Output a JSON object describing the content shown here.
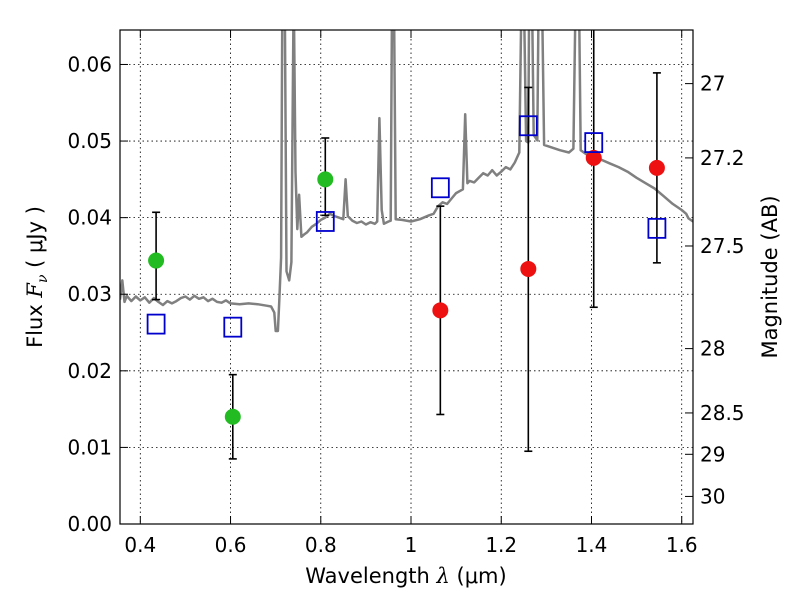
{
  "chart_data": {
    "type": "scatter",
    "xlabel_prefix": "Wavelength  ",
    "xlabel_symbol": "λ",
    "xlabel_unit": " (μm)",
    "ylabel_prefix": "Flux  ",
    "ylabel_symbol": "F",
    "ylabel_subscript": "ν",
    "ylabel_unit": "  ( μJy )",
    "ylabel_right": "Magnitude (AB)",
    "xlim": [
      0.355,
      1.625
    ],
    "ylim": [
      0.0,
      0.0645
    ],
    "x_ticks": [
      0.4,
      0.6,
      0.8,
      1.0,
      1.2,
      1.4,
      1.6
    ],
    "x_tick_labels": [
      "0.4",
      "0.6",
      "0.8",
      "1",
      "1.2",
      "1.4",
      "1.6"
    ],
    "y_ticks": [
      0.0,
      0.01,
      0.02,
      0.03,
      0.04,
      0.05,
      0.06
    ],
    "y_tick_labels": [
      "0.00",
      "0.01",
      "0.02",
      "0.03",
      "0.04",
      "0.05",
      "0.06"
    ],
    "right_ticks": [
      {
        "label": "27",
        "flux": 0.0575
      },
      {
        "label": "27.2",
        "flux": 0.0478
      },
      {
        "label": "27.5",
        "flux": 0.0363
      },
      {
        "label": "28",
        "flux": 0.0229
      },
      {
        "label": "28.5",
        "flux": 0.0145
      },
      {
        "label": "29",
        "flux": 0.0091
      },
      {
        "label": "30",
        "flux": 0.0036
      }
    ],
    "grid": true,
    "colors": {
      "spectrum": "#808080",
      "green_points": "#22bb22",
      "red_points": "#ee1111",
      "model_squares": "#0000cc",
      "errorbars": "#000000"
    },
    "series": [
      {
        "kind": "spectrum_line",
        "points": [
          [
            0.355,
            0.0293
          ],
          [
            0.36,
            0.0318
          ],
          [
            0.365,
            0.029
          ],
          [
            0.37,
            0.0298
          ],
          [
            0.38,
            0.0291
          ],
          [
            0.39,
            0.0297
          ],
          [
            0.4,
            0.0292
          ],
          [
            0.41,
            0.0296
          ],
          [
            0.42,
            0.0289
          ],
          [
            0.43,
            0.0295
          ],
          [
            0.44,
            0.029
          ],
          [
            0.45,
            0.0286
          ],
          [
            0.46,
            0.0291
          ],
          [
            0.47,
            0.0288
          ],
          [
            0.48,
            0.0291
          ],
          [
            0.49,
            0.0295
          ],
          [
            0.5,
            0.0297
          ],
          [
            0.51,
            0.0293
          ],
          [
            0.52,
            0.0298
          ],
          [
            0.53,
            0.0294
          ],
          [
            0.54,
            0.0296
          ],
          [
            0.55,
            0.0291
          ],
          [
            0.56,
            0.0294
          ],
          [
            0.57,
            0.029
          ],
          [
            0.58,
            0.0289
          ],
          [
            0.59,
            0.0292
          ],
          [
            0.6,
            0.0288
          ],
          [
            0.62,
            0.0287
          ],
          [
            0.64,
            0.0288
          ],
          [
            0.66,
            0.0287
          ],
          [
            0.68,
            0.0285
          ],
          [
            0.69,
            0.0284
          ],
          [
            0.697,
            0.0276
          ],
          [
            0.7,
            0.0252
          ],
          [
            0.705,
            0.0252
          ],
          [
            0.708,
            0.0292
          ],
          [
            0.712,
            0.0348
          ],
          [
            0.715,
            0.07
          ],
          [
            0.72,
            0.07
          ],
          [
            0.724,
            0.033
          ],
          [
            0.73,
            0.0318
          ],
          [
            0.735,
            0.0342
          ],
          [
            0.74,
            0.07
          ],
          [
            0.744,
            0.046
          ],
          [
            0.748,
            0.0385
          ],
          [
            0.752,
            0.043
          ],
          [
            0.757,
            0.0375
          ],
          [
            0.763,
            0.0378
          ],
          [
            0.77,
            0.0381
          ],
          [
            0.78,
            0.0388
          ],
          [
            0.79,
            0.0392
          ],
          [
            0.8,
            0.0397
          ],
          [
            0.81,
            0.04
          ],
          [
            0.82,
            0.0405
          ],
          [
            0.83,
            0.0402
          ],
          [
            0.84,
            0.04
          ],
          [
            0.85,
            0.0398
          ],
          [
            0.855,
            0.045
          ],
          [
            0.86,
            0.0402
          ],
          [
            0.87,
            0.0396
          ],
          [
            0.88,
            0.0393
          ],
          [
            0.89,
            0.0395
          ],
          [
            0.9,
            0.0391
          ],
          [
            0.91,
            0.0394
          ],
          [
            0.92,
            0.0392
          ],
          [
            0.925,
            0.0395
          ],
          [
            0.93,
            0.053
          ],
          [
            0.935,
            0.041
          ],
          [
            0.94,
            0.0392
          ],
          [
            0.95,
            0.0395
          ],
          [
            0.955,
            0.0396
          ],
          [
            0.958,
            0.07
          ],
          [
            0.962,
            0.07
          ],
          [
            0.966,
            0.0398
          ],
          [
            0.98,
            0.0397
          ],
          [
            1.0,
            0.0395
          ],
          [
            1.02,
            0.0398
          ],
          [
            1.04,
            0.0403
          ],
          [
            1.05,
            0.0405
          ],
          [
            1.06,
            0.0415
          ],
          [
            1.07,
            0.042
          ],
          [
            1.08,
            0.0418
          ],
          [
            1.09,
            0.0425
          ],
          [
            1.1,
            0.0432
          ],
          [
            1.115,
            0.0437
          ],
          [
            1.12,
            0.0535
          ],
          [
            1.125,
            0.0445
          ],
          [
            1.13,
            0.0448
          ],
          [
            1.14,
            0.0446
          ],
          [
            1.15,
            0.0452
          ],
          [
            1.16,
            0.0458
          ],
          [
            1.17,
            0.0455
          ],
          [
            1.18,
            0.0462
          ],
          [
            1.19,
            0.0455
          ],
          [
            1.2,
            0.046
          ],
          [
            1.21,
            0.0466
          ],
          [
            1.22,
            0.0463
          ],
          [
            1.23,
            0.0472
          ],
          [
            1.24,
            0.0485
          ],
          [
            1.245,
            0.07
          ],
          [
            1.25,
            0.07
          ],
          [
            1.255,
            0.05
          ],
          [
            1.26,
            0.0498
          ],
          [
            1.262,
            0.07
          ],
          [
            1.268,
            0.07
          ],
          [
            1.272,
            0.0508
          ],
          [
            1.28,
            0.0501
          ],
          [
            1.283,
            0.07
          ],
          [
            1.29,
            0.07
          ],
          [
            1.295,
            0.0495
          ],
          [
            1.31,
            0.0492
          ],
          [
            1.33,
            0.0488
          ],
          [
            1.35,
            0.0485
          ],
          [
            1.36,
            0.049
          ],
          [
            1.365,
            0.07
          ],
          [
            1.372,
            0.07
          ],
          [
            1.376,
            0.0488
          ],
          [
            1.39,
            0.0482
          ],
          [
            1.4,
            0.0478
          ],
          [
            1.42,
            0.0476
          ],
          [
            1.44,
            0.0471
          ],
          [
            1.46,
            0.0466
          ],
          [
            1.48,
            0.046
          ],
          [
            1.5,
            0.0452
          ],
          [
            1.52,
            0.0445
          ],
          [
            1.54,
            0.0438
          ],
          [
            1.56,
            0.0428
          ],
          [
            1.58,
            0.0418
          ],
          [
            1.6,
            0.041
          ],
          [
            1.61,
            0.0405
          ],
          [
            1.615,
            0.0399
          ],
          [
            1.625,
            0.0395
          ]
        ]
      },
      {
        "kind": "green_points",
        "points": [
          {
            "x": 0.435,
            "y": 0.0344,
            "err_low": 0.0293,
            "err_high": 0.0407
          },
          {
            "x": 0.605,
            "y": 0.014,
            "err_low": 0.0085,
            "err_high": 0.0195
          },
          {
            "x": 0.81,
            "y": 0.045,
            "err_low": 0.0403,
            "err_high": 0.0504
          }
        ]
      },
      {
        "kind": "red_points",
        "points": [
          {
            "x": 1.065,
            "y": 0.0279,
            "err_low": 0.0143,
            "err_high": 0.0415
          },
          {
            "x": 1.26,
            "y": 0.0333,
            "err_low": 0.0095,
            "err_high": 0.057
          },
          {
            "x": 1.405,
            "y": 0.0478,
            "err_low": 0.0283,
            "err_high": 0.0673
          },
          {
            "x": 1.545,
            "y": 0.0465,
            "err_low": 0.0341,
            "err_high": 0.0589
          }
        ]
      },
      {
        "kind": "model_squares",
        "points": [
          {
            "x": 0.435,
            "y": 0.0261
          },
          {
            "x": 0.605,
            "y": 0.0257
          },
          {
            "x": 0.81,
            "y": 0.0395
          },
          {
            "x": 1.065,
            "y": 0.0439
          },
          {
            "x": 1.26,
            "y": 0.052
          },
          {
            "x": 1.405,
            "y": 0.0498
          },
          {
            "x": 1.545,
            "y": 0.0386
          }
        ]
      }
    ]
  }
}
